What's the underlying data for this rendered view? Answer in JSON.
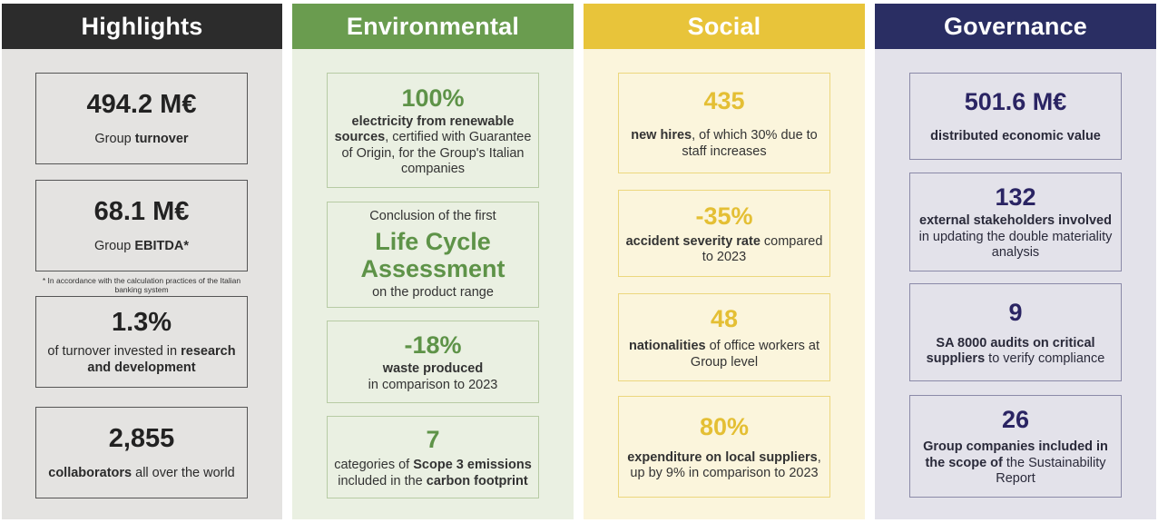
{
  "columns": {
    "highlights": {
      "title": "Highlights",
      "cards": [
        {
          "value": "494.2 M€",
          "pre": "Group ",
          "bold": "turnover",
          "post": ""
        },
        {
          "value": "68.1 M€",
          "pre": "Group ",
          "bold": "EBITDA*",
          "post": ""
        },
        {
          "value": "1.3%",
          "pre": "of turnover invested in ",
          "bold": "research and development",
          "post": ""
        },
        {
          "value": "2,855",
          "pre": "",
          "bold": "collaborators",
          "post": " all over the world"
        }
      ],
      "footnote": "* In accordance with the calculation practices of the Italian banking system"
    },
    "environmental": {
      "title": "Environmental",
      "cards": [
        {
          "value": "100%",
          "pre": "",
          "bold": "electricity from renewable sources",
          "post": ", certified with Guarantee of Origin, for the Group's Italian companies"
        },
        {
          "pre_text": "Conclusion of the first",
          "value": "Life Cycle Assessment",
          "post_text": "on the product range"
        },
        {
          "value": "-18%",
          "bold": "waste produced",
          "post": "in comparison to 2023"
        },
        {
          "value": "7",
          "pre": "categories of ",
          "bold": "Scope 3 emissions",
          "mid": " included in the ",
          "bold2": "carbon footprint"
        }
      ]
    },
    "social": {
      "title": "Social",
      "cards": [
        {
          "value": "435",
          "pre": "",
          "bold": "new hires",
          "post": ", of which 30% due to staff increases"
        },
        {
          "value": "-35%",
          "pre": "",
          "bold": "accident severity rate",
          "post": " compared to 2023"
        },
        {
          "value": "48",
          "pre": "",
          "bold": "nationalities",
          "post": " of office workers at Group level"
        },
        {
          "value": "80%",
          "pre": "",
          "bold": "expenditure on local suppliers",
          "post": ", up by 9% in comparison to 2023"
        }
      ]
    },
    "governance": {
      "title": "Governance",
      "cards": [
        {
          "value": "501.6 M€",
          "pre": "",
          "bold": "distributed economic value",
          "post": ""
        },
        {
          "value": "132",
          "pre": "",
          "bold": "external stakeholders  involved",
          "post": " in updating the double materiality analysis"
        },
        {
          "value": "9",
          "pre": "",
          "bold": "SA 8000 audits on critical suppliers",
          "post": "  to verify compliance"
        },
        {
          "value": "26",
          "pre": "",
          "bold": "Group companies included in the scope of",
          "post": " the Sustainability Report"
        }
      ]
    }
  },
  "colors": {
    "highlights": "#2c2c2c",
    "environmental": "#6a9c4f",
    "social": "#e8c43a",
    "governance": "#2a2e63"
  }
}
